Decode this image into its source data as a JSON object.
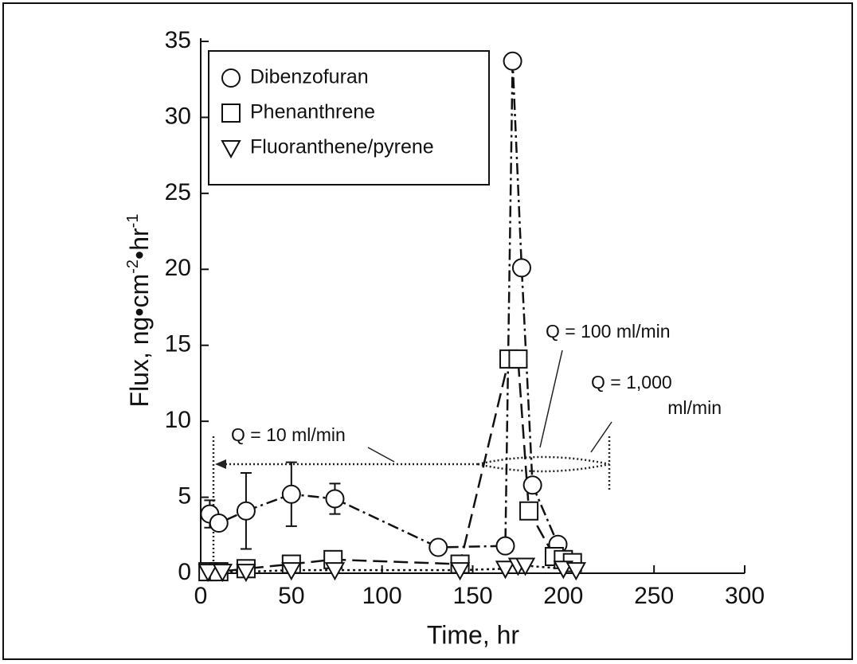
{
  "chart_data": {
    "type": "scatter",
    "xlabel": "Time, hr",
    "ylabel_parts": [
      "Flux, ng•cm",
      "-2",
      "•hr",
      "-1"
    ],
    "xlim": [
      0,
      300
    ],
    "xticks": [
      0,
      50,
      100,
      150,
      200,
      250,
      300
    ],
    "ylim": [
      0,
      35
    ],
    "yticks": [
      0,
      5,
      10,
      15,
      20,
      25,
      30,
      35
    ],
    "legend": "top-left",
    "series": [
      {
        "name": "Dibenzofuran",
        "marker": "circle",
        "color": "#111111",
        "dash": "14 5 3 5",
        "x": [
          5,
          10,
          25,
          50,
          74,
          131,
          168,
          172,
          177,
          183,
          197
        ],
        "values": [
          3.9,
          3.3,
          4.1,
          5.2,
          4.9,
          1.7,
          1.8,
          33.7,
          20.1,
          5.8,
          1.9
        ],
        "errors": [
          0.9,
          null,
          2.5,
          2.1,
          1.0,
          0.3,
          null,
          null,
          null,
          null,
          null
        ]
      },
      {
        "name": "Phenanthrene",
        "marker": "square",
        "color": "#111111",
        "dash": "18 8",
        "x": [
          4,
          10,
          25,
          50,
          73,
          143,
          170,
          175,
          181,
          195,
          200,
          205
        ],
        "values": [
          0.1,
          0.1,
          0.3,
          0.6,
          0.9,
          0.6,
          14.1,
          14.1,
          4.1,
          1.1,
          0.9,
          0.7
        ]
      },
      {
        "name": "Fluoranthene/pyrene",
        "marker": "triangle-down",
        "color": "#111111",
        "dash": "3 4",
        "x": [
          4,
          12,
          25,
          50,
          74,
          143,
          168,
          175,
          179,
          200,
          207
        ],
        "values": [
          0.1,
          0.1,
          0.1,
          0.2,
          0.2,
          0.2,
          0.3,
          0.5,
          0.5,
          0.3,
          0.2
        ]
      }
    ],
    "annotations": [
      {
        "lines": [
          "Q = 10 ml/min"
        ]
      },
      {
        "lines": [
          "Q = 100 ml/min"
        ]
      },
      {
        "lines": [
          "Q = 1,000",
          "ml/min"
        ]
      }
    ]
  }
}
